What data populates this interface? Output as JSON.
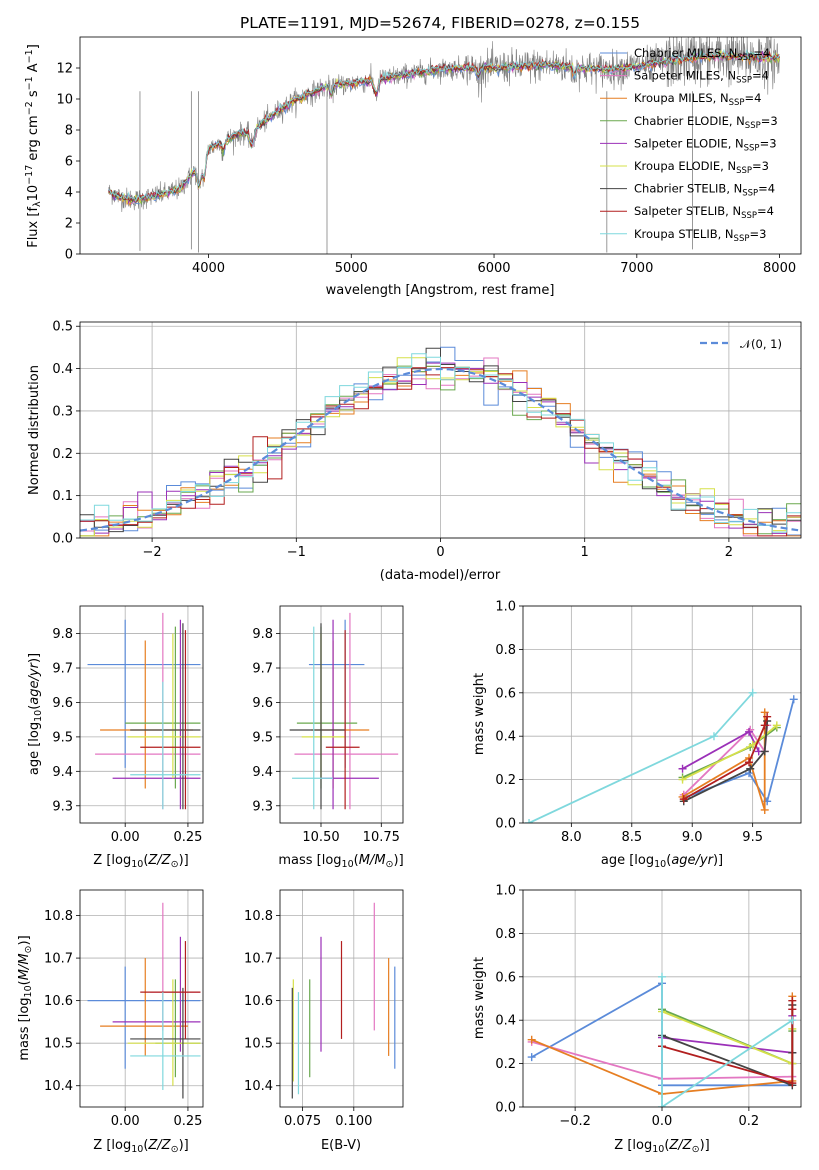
{
  "colors": {
    "Chabrier MILES": "#5b8bd9",
    "Salpeter MILES": "#e377c2",
    "Kroupa MILES": "#e67e22",
    "Chabrier ELODIE": "#6aa84f",
    "Salpeter ELODIE": "#9b30b8",
    "Kroupa ELODIE": "#d6e04a",
    "Chabrier STELIB": "#444444",
    "Salpeter STELIB": "#b21f1f",
    "Kroupa STELIB": "#7fd8dd"
  },
  "chart_data": [
    {
      "id": "spectrum",
      "type": "line",
      "title": "PLATE=1191, MJD=52674, FIBERID=0278, z=0.155",
      "xlabel": "wavelength [Angstrom, rest frame]",
      "ylabel": "Flux [f_λ10^-17 erg cm^-2 s^-1 A^-1]",
      "xlim": [
        3100,
        8150
      ],
      "ylim": [
        0,
        14
      ],
      "xticks": [
        4000,
        5000,
        6000,
        7000,
        8000
      ],
      "yticks": [
        0,
        2,
        4,
        6,
        8,
        10,
        12
      ],
      "grid": false,
      "legend_position": "top-right",
      "data_color": "#808080",
      "continuum": {
        "x": [
          3300,
          3400,
          3500,
          3600,
          3700,
          3800,
          3900,
          4000,
          4100,
          4200,
          4300,
          4400,
          4500,
          4600,
          4700,
          4800,
          4900,
          5000,
          5200,
          5400,
          5600,
          5800,
          6000,
          6200,
          6400,
          6600,
          6800,
          7000,
          7200,
          7400,
          7600,
          7800,
          8000
        ],
        "y": [
          4.0,
          3.6,
          3.5,
          3.7,
          3.9,
          4.2,
          5.3,
          6.8,
          7.2,
          7.7,
          7.9,
          8.6,
          9.3,
          9.9,
          10.3,
          10.7,
          10.9,
          11.0,
          11.3,
          11.6,
          11.9,
          12.0,
          12.0,
          12.1,
          12.2,
          12.0,
          11.9,
          12.1,
          12.4,
          12.7,
          12.8,
          12.7,
          12.6
        ]
      },
      "series": [
        {
          "name": "Chabrier MILES, N_SSP=4",
          "label": "Chabrier MILES",
          "sub": "SSP",
          "value": "=4",
          "color": "Chabrier MILES"
        },
        {
          "name": "Salpeter MILES, N_SSP=4",
          "label": "Salpeter MILES",
          "sub": "SSP",
          "value": "=4",
          "color": "Salpeter MILES"
        },
        {
          "name": "Kroupa MILES, N_SSP=4",
          "label": "Kroupa MILES",
          "sub": "SSP",
          "value": "=4",
          "color": "Kroupa MILES"
        },
        {
          "name": "Chabrier ELODIE, N_SSP=3",
          "label": "Chabrier ELODIE",
          "sub": "SSP",
          "value": "=3",
          "color": "Chabrier ELODIE"
        },
        {
          "name": "Salpeter ELODIE, N_SSP=3",
          "label": "Salpeter ELODIE",
          "sub": "SSP",
          "value": "=3",
          "color": "Salpeter ELODIE"
        },
        {
          "name": "Kroupa ELODIE, N_SSP=3",
          "label": "Kroupa ELODIE",
          "sub": "SSP",
          "value": "=3",
          "color": "Kroupa ELODIE"
        },
        {
          "name": "Chabrier STELIB, N_SSP=4",
          "label": "Chabrier STELIB",
          "sub": "SSP",
          "value": "=4",
          "color": "Chabrier STELIB"
        },
        {
          "name": "Salpeter STELIB, N_SSP=4",
          "label": "Salpeter STELIB",
          "sub": "SSP",
          "value": "=4",
          "color": "Salpeter STELIB"
        },
        {
          "name": "Kroupa STELIB, N_SSP=3",
          "label": "Kroupa STELIB",
          "sub": "SSP",
          "value": "=3",
          "color": "Kroupa STELIB"
        }
      ]
    },
    {
      "id": "residuals",
      "type": "line",
      "xlabel": "(data-model)/error",
      "ylabel": "Normed distribution",
      "xlim": [
        -2.5,
        2.5
      ],
      "ylim": [
        0,
        0.51
      ],
      "xticks": [
        -2,
        -1,
        0,
        1,
        2
      ],
      "xticklabels": [
        "−2",
        "−1",
        "0",
        "1",
        "2"
      ],
      "yticks": [
        0.0,
        0.1,
        0.2,
        0.3,
        0.4,
        0.5
      ],
      "yticklabels": [
        "0.0",
        "0.1",
        "0.2",
        "0.3",
        "0.4",
        "0.5"
      ],
      "grid": true,
      "legend": {
        "label": "𝒩(0, 1)",
        "position": "top-right",
        "color": "#5b8bd9"
      },
      "bin_width": 0.1
    },
    {
      "id": "age_vs_Z",
      "type": "scatter",
      "xlabel": "Z [log10(Z/Z⊙)]",
      "ylabel": "age [log10(age/yr)]",
      "xlim": [
        -0.18,
        0.31
      ],
      "ylim": [
        9.25,
        9.88
      ],
      "xticks": [
        0.0,
        0.25
      ],
      "xticklabels": [
        "0.00",
        "0.25"
      ],
      "yticks": [
        9.3,
        9.4,
        9.5,
        9.6,
        9.7,
        9.8
      ],
      "yticklabels": [
        "9.3",
        "9.4",
        "9.5",
        "9.6",
        "9.7",
        "9.8"
      ],
      "grid": true,
      "points": [
        {
          "color": "Chabrier MILES",
          "x": 0.0,
          "y": 9.71,
          "x_lo": -0.15,
          "x_hi": 0.3,
          "y_lo": 9.41,
          "y_hi": 9.84
        },
        {
          "color": "Salpeter MILES",
          "x": 0.15,
          "y": 9.45,
          "x_lo": -0.12,
          "x_hi": 0.3,
          "y_lo": 9.29,
          "y_hi": 9.86
        },
        {
          "color": "Kroupa MILES",
          "x": 0.08,
          "y": 9.52,
          "x_lo": -0.1,
          "x_hi": 0.27,
          "y_lo": 9.35,
          "y_hi": 9.78
        },
        {
          "color": "Chabrier ELODIE",
          "x": 0.2,
          "y": 9.54,
          "x_lo": 0.0,
          "x_hi": 0.3,
          "y_lo": 9.35,
          "y_hi": 9.82
        },
        {
          "color": "Salpeter ELODIE",
          "x": 0.22,
          "y": 9.38,
          "x_lo": -0.05,
          "x_hi": 0.3,
          "y_lo": 9.29,
          "y_hi": 9.84
        },
        {
          "color": "Kroupa ELODIE",
          "x": 0.19,
          "y": 9.5,
          "x_lo": 0.01,
          "x_hi": 0.3,
          "y_lo": 9.38,
          "y_hi": 9.8
        },
        {
          "color": "Chabrier STELIB",
          "x": 0.23,
          "y": 9.52,
          "x_lo": 0.02,
          "x_hi": 0.3,
          "y_lo": 9.29,
          "y_hi": 9.83
        },
        {
          "color": "Salpeter STELIB",
          "x": 0.24,
          "y": 9.47,
          "x_lo": 0.06,
          "x_hi": 0.3,
          "y_lo": 9.29,
          "y_hi": 9.81
        },
        {
          "color": "Kroupa STELIB",
          "x": 0.15,
          "y": 9.39,
          "x_lo": 0.02,
          "x_hi": 0.3,
          "y_lo": 9.29,
          "y_hi": 9.66
        }
      ]
    },
    {
      "id": "age_vs_mass",
      "type": "scatter",
      "xlabel": "mass [log10(M/M⊙)]",
      "xlim": [
        10.33,
        10.84
      ],
      "ylim": [
        9.25,
        9.88
      ],
      "xticks": [
        10.5,
        10.75
      ],
      "xticklabels": [
        "10.50",
        "10.75"
      ],
      "yticks": [
        9.3,
        9.4,
        9.5,
        9.6,
        9.7,
        9.8
      ],
      "yticklabels": [
        "9.3",
        "9.4",
        "9.5",
        "9.6",
        "9.7",
        "9.8"
      ],
      "grid": true,
      "points": [
        {
          "color": "Chabrier MILES",
          "x": 10.6,
          "y": 9.71,
          "x_lo": 10.45,
          "x_hi": 10.68,
          "y_lo": 9.41,
          "y_hi": 9.84
        },
        {
          "color": "Salpeter MILES",
          "x": 10.62,
          "y": 9.45,
          "x_lo": 10.39,
          "x_hi": 10.82,
          "y_lo": 9.29,
          "y_hi": 9.86
        },
        {
          "color": "Kroupa MILES",
          "x": 10.55,
          "y": 9.52,
          "x_lo": 10.46,
          "x_hi": 10.7,
          "y_lo": 9.35,
          "y_hi": 9.78
        },
        {
          "color": "Chabrier ELODIE",
          "x": 10.5,
          "y": 9.54,
          "x_lo": 10.4,
          "x_hi": 10.65,
          "y_lo": 9.35,
          "y_hi": 9.82
        },
        {
          "color": "Salpeter ELODIE",
          "x": 10.55,
          "y": 9.38,
          "x_lo": 10.5,
          "x_hi": 10.74,
          "y_lo": 9.29,
          "y_hi": 9.84
        },
        {
          "color": "Kroupa ELODIE",
          "x": 10.5,
          "y": 9.5,
          "x_lo": 10.42,
          "x_hi": 10.6,
          "y_lo": 9.38,
          "y_hi": 9.8
        },
        {
          "color": "Chabrier STELIB",
          "x": 10.5,
          "y": 9.52,
          "x_lo": 10.37,
          "x_hi": 10.6,
          "y_lo": 9.29,
          "y_hi": 9.83
        },
        {
          "color": "Salpeter STELIB",
          "x": 10.6,
          "y": 9.47,
          "x_lo": 10.52,
          "x_hi": 10.66,
          "y_lo": 9.29,
          "y_hi": 9.81
        },
        {
          "color": "Kroupa STELIB",
          "x": 10.47,
          "y": 9.38,
          "x_lo": 10.38,
          "x_hi": 10.55,
          "y_lo": 9.29,
          "y_hi": 9.82
        }
      ]
    },
    {
      "id": "weight_vs_age",
      "type": "line",
      "xlabel": "age [log10(age/yr)]",
      "ylabel": "mass weight",
      "xlim": [
        7.6,
        9.9
      ],
      "ylim": [
        0,
        1.0
      ],
      "xticks": [
        8.0,
        8.5,
        9.0,
        9.5
      ],
      "xticklabels": [
        "8.0",
        "8.5",
        "9.0",
        "9.5"
      ],
      "yticks": [
        0.0,
        0.2,
        0.4,
        0.6,
        0.8,
        1.0
      ],
      "yticklabels": [
        "0.0",
        "0.2",
        "0.4",
        "0.6",
        "0.8",
        "1.0"
      ],
      "grid": true,
      "series": [
        {
          "color": "Chabrier MILES",
          "x": [
            8.95,
            9.47,
            9.62,
            9.84
          ],
          "y": [
            0.12,
            0.23,
            0.1,
            0.57
          ]
        },
        {
          "color": "Salpeter MILES",
          "x": [
            8.93,
            9.48,
            9.6,
            9.62
          ],
          "y": [
            0.13,
            0.43,
            0.33,
            0.45
          ]
        },
        {
          "color": "Kroupa MILES",
          "x": [
            8.92,
            9.47,
            9.6,
            9.6
          ],
          "y": [
            0.12,
            0.3,
            0.06,
            0.51
          ]
        },
        {
          "color": "Chabrier ELODIE",
          "x": [
            8.92,
            9.48,
            9.7
          ],
          "y": [
            0.21,
            0.35,
            0.44
          ]
        },
        {
          "color": "Salpeter ELODIE",
          "x": [
            8.92,
            9.47,
            9.55
          ],
          "y": [
            0.25,
            0.42,
            0.33
          ]
        },
        {
          "color": "Kroupa ELODIE",
          "x": [
            8.92,
            9.5,
            9.7
          ],
          "y": [
            0.2,
            0.36,
            0.45
          ]
        },
        {
          "color": "Chabrier STELIB",
          "x": [
            8.93,
            9.48,
            9.6,
            9.62
          ],
          "y": [
            0.1,
            0.25,
            0.33,
            0.47
          ]
        },
        {
          "color": "Salpeter STELIB",
          "x": [
            8.93,
            9.47,
            9.6,
            9.62
          ],
          "y": [
            0.11,
            0.28,
            0.45,
            0.49
          ]
        },
        {
          "color": "Kroupa STELIB",
          "x": [
            7.65,
            9.18,
            9.5
          ],
          "y": [
            0.0,
            0.4,
            0.6
          ]
        }
      ]
    },
    {
      "id": "mass_vs_Z",
      "type": "scatter",
      "xlabel": "Z [log10(Z/Z⊙)]",
      "ylabel": "mass [log10(M/M⊙)]",
      "xlim": [
        -0.18,
        0.31
      ],
      "ylim": [
        10.35,
        10.86
      ],
      "xticks": [
        0.0,
        0.25
      ],
      "xticklabels": [
        "0.00",
        "0.25"
      ],
      "yticks": [
        10.4,
        10.5,
        10.6,
        10.7,
        10.8
      ],
      "yticklabels": [
        "10.4",
        "10.5",
        "10.6",
        "10.7",
        "10.8"
      ],
      "grid": true,
      "points": [
        {
          "color": "Chabrier MILES",
          "x": 0.0,
          "y": 10.6,
          "x_lo": -0.15,
          "x_hi": 0.3,
          "y_lo": 10.44,
          "y_hi": 10.68
        },
        {
          "color": "Salpeter MILES",
          "x": 0.15,
          "y": 10.62,
          "x_lo": 0.1,
          "x_hi": 0.3,
          "y_lo": 10.53,
          "y_hi": 10.83
        },
        {
          "color": "Kroupa MILES",
          "x": 0.08,
          "y": 10.54,
          "x_lo": -0.1,
          "x_hi": 0.25,
          "y_lo": 10.47,
          "y_hi": 10.7
        },
        {
          "color": "Chabrier ELODIE",
          "x": 0.2,
          "y": 10.5,
          "x_lo": 0.12,
          "x_hi": 0.3,
          "y_lo": 10.42,
          "y_hi": 10.65
        },
        {
          "color": "Salpeter ELODIE",
          "x": 0.22,
          "y": 10.55,
          "x_lo": -0.05,
          "x_hi": 0.3,
          "y_lo": 10.48,
          "y_hi": 10.75
        },
        {
          "color": "Kroupa ELODIE",
          "x": 0.19,
          "y": 10.5,
          "x_lo": 0.01,
          "x_hi": 0.3,
          "y_lo": 10.4,
          "y_hi": 10.65
        },
        {
          "color": "Chabrier STELIB",
          "x": 0.23,
          "y": 10.51,
          "x_lo": 0.02,
          "x_hi": 0.3,
          "y_lo": 10.37,
          "y_hi": 10.63
        },
        {
          "color": "Salpeter STELIB",
          "x": 0.24,
          "y": 10.62,
          "x_lo": 0.06,
          "x_hi": 0.3,
          "y_lo": 10.51,
          "y_hi": 10.74
        },
        {
          "color": "Kroupa STELIB",
          "x": 0.15,
          "y": 10.47,
          "x_lo": 0.02,
          "x_hi": 0.3,
          "y_lo": 10.39,
          "y_hi": 10.62
        }
      ]
    },
    {
      "id": "mass_vs_ebv",
      "type": "scatter",
      "xlabel": "E(B-V)",
      "xlim": [
        0.064,
        0.124
      ],
      "ylim": [
        10.35,
        10.86
      ],
      "xticks": [
        0.075,
        0.1
      ],
      "xticklabels": [
        "0.075",
        "0.100"
      ],
      "yticks": [
        10.4,
        10.5,
        10.6,
        10.7,
        10.8
      ],
      "yticklabels": [
        "10.4",
        "10.5",
        "10.6",
        "10.7",
        "10.8"
      ],
      "grid": true,
      "points": [
        {
          "color": "Chabrier MILES",
          "x": 0.12,
          "y": 10.56,
          "y_lo": 10.44,
          "y_hi": 10.68
        },
        {
          "color": "Salpeter MILES",
          "x": 0.11,
          "y": 10.68,
          "y_lo": 10.53,
          "y_hi": 10.83
        },
        {
          "color": "Kroupa MILES",
          "x": 0.117,
          "y": 10.58,
          "y_lo": 10.47,
          "y_hi": 10.7
        },
        {
          "color": "Chabrier ELODIE",
          "x": 0.0785,
          "y": 10.53,
          "y_lo": 10.42,
          "y_hi": 10.65
        },
        {
          "color": "Salpeter ELODIE",
          "x": 0.084,
          "y": 10.62,
          "y_lo": 10.48,
          "y_hi": 10.75
        },
        {
          "color": "Kroupa ELODIE",
          "x": 0.0705,
          "y": 10.53,
          "y_lo": 10.41,
          "y_hi": 10.65
        },
        {
          "color": "Chabrier STELIB",
          "x": 0.07,
          "y": 10.5,
          "y_lo": 10.37,
          "y_hi": 10.63
        },
        {
          "color": "Salpeter STELIB",
          "x": 0.094,
          "y": 10.62,
          "y_lo": 10.51,
          "y_hi": 10.74
        },
        {
          "color": "Kroupa STELIB",
          "x": 0.073,
          "y": 10.5,
          "y_lo": 10.38,
          "y_hi": 10.62
        }
      ]
    },
    {
      "id": "weight_vs_Z",
      "type": "line",
      "xlabel": "Z [log10(Z/Z⊙)]",
      "ylabel": "mass weight",
      "xlim": [
        -0.32,
        0.32
      ],
      "ylim": [
        0,
        1.0
      ],
      "xticks": [
        -0.2,
        0.0,
        0.2
      ],
      "xticklabels": [
        "−0.2",
        "0.0",
        "0.2"
      ],
      "yticks": [
        0.0,
        0.2,
        0.4,
        0.6,
        0.8,
        1.0
      ],
      "yticklabels": [
        "0.0",
        "0.2",
        "0.4",
        "0.6",
        "0.8",
        "1.0"
      ],
      "grid": true,
      "series": [
        {
          "color": "Chabrier MILES",
          "x": [
            -0.3,
            0.0,
            0.0,
            0.3
          ],
          "y": [
            0.23,
            0.57,
            0.1,
            0.1
          ]
        },
        {
          "color": "Salpeter MILES",
          "x": [
            -0.3,
            0.0,
            0.3,
            0.3
          ],
          "y": [
            0.3,
            0.13,
            0.14,
            0.45
          ]
        },
        {
          "color": "Kroupa MILES",
          "x": [
            -0.3,
            0.0,
            0.3,
            0.3
          ],
          "y": [
            0.31,
            0.06,
            0.12,
            0.51
          ]
        },
        {
          "color": "Chabrier ELODIE",
          "x": [
            0.0,
            0.3,
            0.3
          ],
          "y": [
            0.45,
            0.2,
            0.35
          ]
        },
        {
          "color": "Salpeter ELODIE",
          "x": [
            0.0,
            0.3,
            0.3
          ],
          "y": [
            0.32,
            0.25,
            0.42
          ]
        },
        {
          "color": "Kroupa ELODIE",
          "x": [
            0.0,
            0.3,
            0.3
          ],
          "y": [
            0.44,
            0.2,
            0.36
          ]
        },
        {
          "color": "Chabrier STELIB",
          "x": [
            0.0,
            0.3,
            0.3,
            0.3
          ],
          "y": [
            0.33,
            0.1,
            0.47,
            0.25
          ]
        },
        {
          "color": "Salpeter STELIB",
          "x": [
            0.0,
            0.3,
            0.3,
            0.3
          ],
          "y": [
            0.28,
            0.11,
            0.49,
            0.45
          ]
        },
        {
          "color": "Kroupa STELIB",
          "x": [
            0.0,
            0.0,
            0.3
          ],
          "y": [
            0.6,
            0.0,
            0.4
          ]
        }
      ]
    }
  ]
}
